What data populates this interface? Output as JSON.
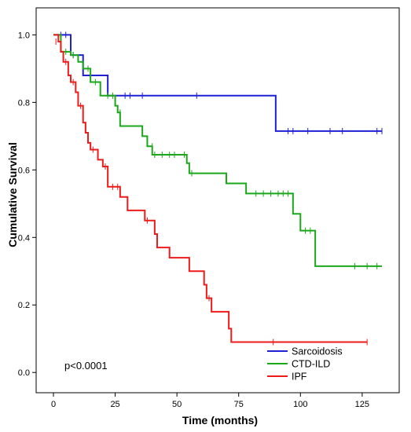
{
  "chart_data": {
    "type": "line",
    "xlabel": "Time (months)",
    "ylabel": "Cumulative Survival",
    "xlim": [
      -7,
      140
    ],
    "ylim": [
      -0.06,
      1.08
    ],
    "xticks": [
      "0",
      "25",
      "50",
      "75",
      "100",
      "125"
    ],
    "yticks": [
      "0.0",
      "0.2",
      "0.4",
      "0.6",
      "0.8",
      "1.0"
    ],
    "legend_position": "bottom-right",
    "annotation": "p<0.0001",
    "series": [
      {
        "name": "Sarcoidosis",
        "color": "#1f1fd6",
        "steps": [
          [
            0,
            1.0
          ],
          [
            7,
            0.94
          ],
          [
            12,
            0.88
          ],
          [
            22,
            0.82
          ],
          [
            90,
            0.715
          ],
          [
            133,
            0.715
          ]
        ],
        "censored": [
          [
            3,
            1.0
          ],
          [
            5,
            1.0
          ],
          [
            8,
            0.94
          ],
          [
            29,
            0.82
          ],
          [
            31,
            0.82
          ],
          [
            36,
            0.82
          ],
          [
            58,
            0.82
          ],
          [
            95,
            0.715
          ],
          [
            97,
            0.715
          ],
          [
            103,
            0.715
          ],
          [
            112,
            0.715
          ],
          [
            117,
            0.715
          ],
          [
            131,
            0.715
          ],
          [
            133,
            0.715
          ]
        ]
      },
      {
        "name": "CTD-ILD",
        "color": "#1aa81a",
        "steps": [
          [
            0,
            1.0
          ],
          [
            3,
            0.95
          ],
          [
            7,
            0.94
          ],
          [
            10,
            0.92
          ],
          [
            12,
            0.9
          ],
          [
            15,
            0.86
          ],
          [
            19,
            0.82
          ],
          [
            25,
            0.79
          ],
          [
            26,
            0.77
          ],
          [
            27,
            0.73
          ],
          [
            36,
            0.7
          ],
          [
            38,
            0.67
          ],
          [
            40,
            0.645
          ],
          [
            54,
            0.62
          ],
          [
            55,
            0.59
          ],
          [
            70,
            0.56
          ],
          [
            78,
            0.53
          ],
          [
            97,
            0.47
          ],
          [
            100,
            0.42
          ],
          [
            106,
            0.315
          ],
          [
            133,
            0.315
          ]
        ],
        "censored": [
          [
            5,
            0.95
          ],
          [
            8,
            0.94
          ],
          [
            14,
            0.9
          ],
          [
            17,
            0.86
          ],
          [
            22,
            0.82
          ],
          [
            24,
            0.82
          ],
          [
            27,
            0.77
          ],
          [
            40,
            0.67
          ],
          [
            41,
            0.645
          ],
          [
            44,
            0.645
          ],
          [
            47,
            0.645
          ],
          [
            49,
            0.645
          ],
          [
            53,
            0.645
          ],
          [
            56,
            0.59
          ],
          [
            82,
            0.53
          ],
          [
            85,
            0.53
          ],
          [
            88,
            0.53
          ],
          [
            91,
            0.53
          ],
          [
            93,
            0.53
          ],
          [
            95,
            0.53
          ],
          [
            102,
            0.42
          ],
          [
            104,
            0.42
          ],
          [
            122,
            0.315
          ],
          [
            127,
            0.315
          ],
          [
            131,
            0.315
          ]
        ]
      },
      {
        "name": "IPF",
        "color": "#ee1b1b",
        "steps": [
          [
            0,
            1.0
          ],
          [
            2,
            0.98
          ],
          [
            3,
            0.95
          ],
          [
            4,
            0.92
          ],
          [
            6,
            0.88
          ],
          [
            7,
            0.86
          ],
          [
            9,
            0.83
          ],
          [
            10,
            0.79
          ],
          [
            12,
            0.74
          ],
          [
            13,
            0.71
          ],
          [
            14,
            0.68
          ],
          [
            15,
            0.66
          ],
          [
            18,
            0.63
          ],
          [
            20,
            0.61
          ],
          [
            22,
            0.55
          ],
          [
            27,
            0.52
          ],
          [
            30,
            0.48
          ],
          [
            37,
            0.45
          ],
          [
            41,
            0.41
          ],
          [
            42,
            0.37
          ],
          [
            47,
            0.34
          ],
          [
            55,
            0.3
          ],
          [
            61,
            0.26
          ],
          [
            62,
            0.22
          ],
          [
            64,
            0.18
          ],
          [
            71,
            0.13
          ],
          [
            72,
            0.09
          ],
          [
            127,
            0.09
          ]
        ],
        "censored": [
          [
            1,
            0.98
          ],
          [
            5,
            0.92
          ],
          [
            8,
            0.86
          ],
          [
            11,
            0.79
          ],
          [
            14,
            0.7
          ],
          [
            16,
            0.66
          ],
          [
            21,
            0.61
          ],
          [
            24,
            0.55
          ],
          [
            26,
            0.55
          ],
          [
            38,
            0.45
          ],
          [
            63,
            0.22
          ],
          [
            89,
            0.09
          ],
          [
            127,
            0.09
          ]
        ]
      }
    ]
  }
}
